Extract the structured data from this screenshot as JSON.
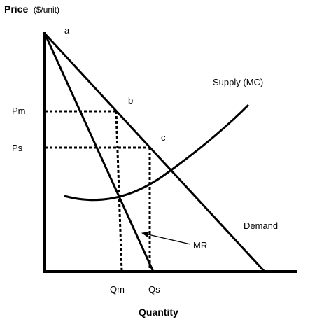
{
  "axes": {
    "y_title": "Price",
    "y_unit": "($/unit)",
    "x_title": "Quantity"
  },
  "points": {
    "a": "a",
    "b": "b",
    "c": "c"
  },
  "price_labels": {
    "pm": "Pm",
    "ps": "Ps"
  },
  "quantity_labels": {
    "qm": "Qm",
    "qs": "Qs"
  },
  "curves": {
    "supply": "Supply (MC)",
    "demand": "Demand",
    "mr": "MR"
  },
  "colors": {
    "ink": "#000000",
    "background": "#ffffff"
  }
}
